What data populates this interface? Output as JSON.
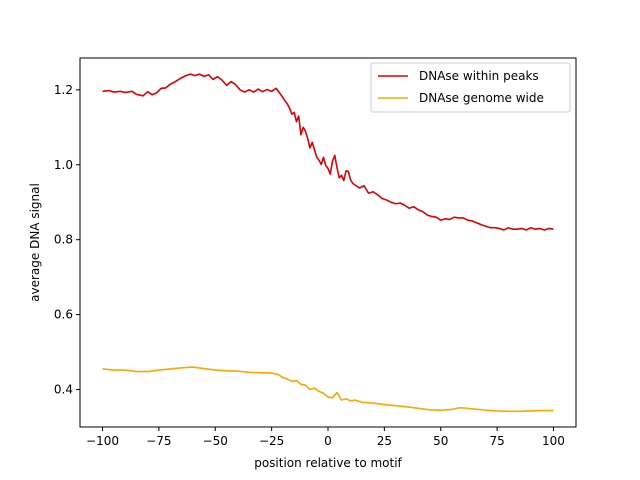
{
  "chart_data": {
    "type": "line",
    "title": "",
    "xlabel": "position relative to motif",
    "ylabel": "average DNA signal",
    "xlim": [
      -110,
      110
    ],
    "ylim": [
      0.3,
      1.285
    ],
    "xticks": [
      -100,
      -75,
      -50,
      -25,
      0,
      25,
      50,
      75,
      100
    ],
    "xtick_labels": [
      "−100",
      "−75",
      "−50",
      "−25",
      "0",
      "25",
      "50",
      "75",
      "100"
    ],
    "yticks": [
      0.4,
      0.6,
      0.8,
      1.0,
      1.2
    ],
    "ytick_labels": [
      "0.4",
      "0.6",
      "0.8",
      "1.0",
      "1.2"
    ],
    "grid": false,
    "legend_position": "top-right",
    "series": [
      {
        "name": "DNAse within peaks",
        "color": "#e00000",
        "x": [
          -100,
          -97,
          -95,
          -92,
          -90,
          -87,
          -85,
          -82,
          -80,
          -78,
          -76,
          -74,
          -72,
          -70,
          -68,
          -65,
          -63,
          -61,
          -59,
          -57,
          -55,
          -53,
          -51,
          -49,
          -47,
          -45,
          -43,
          -41,
          -39,
          -37,
          -35,
          -33,
          -31,
          -29,
          -27,
          -25,
          -23,
          -21,
          -19,
          -18,
          -17,
          -16,
          -15,
          -14,
          -13,
          -12,
          -11,
          -10,
          -9,
          -8,
          -7,
          -6,
          -5,
          -4,
          -3,
          -2,
          -1,
          0,
          1,
          2,
          3,
          4,
          5,
          6,
          7,
          8,
          9,
          10,
          11,
          12,
          14,
          16,
          18,
          20,
          22,
          24,
          26,
          28,
          30,
          32,
          34,
          36,
          38,
          40,
          42,
          44,
          46,
          48,
          50,
          52,
          54,
          56,
          58,
          60,
          62,
          64,
          66,
          68,
          70,
          72,
          74,
          76,
          78,
          80,
          82,
          84,
          86,
          88,
          90,
          92,
          94,
          96,
          98,
          100
        ],
        "y": [
          1.196,
          1.198,
          1.194,
          1.196,
          1.193,
          1.196,
          1.188,
          1.184,
          1.195,
          1.187,
          1.192,
          1.204,
          1.205,
          1.215,
          1.221,
          1.232,
          1.238,
          1.242,
          1.238,
          1.242,
          1.236,
          1.24,
          1.228,
          1.235,
          1.226,
          1.212,
          1.222,
          1.214,
          1.2,
          1.194,
          1.2,
          1.194,
          1.202,
          1.195,
          1.201,
          1.196,
          1.204,
          1.188,
          1.17,
          1.162,
          1.15,
          1.135,
          1.14,
          1.115,
          1.13,
          1.08,
          1.1,
          1.09,
          1.07,
          1.045,
          1.06,
          1.04,
          1.02,
          1.012,
          1.001,
          1.02,
          0.998,
          0.99,
          0.975,
          1.01,
          1.025,
          0.992,
          0.965,
          0.972,
          0.958,
          0.984,
          0.982,
          0.96,
          0.95,
          0.946,
          0.938,
          0.944,
          0.924,
          0.928,
          0.92,
          0.91,
          0.906,
          0.9,
          0.896,
          0.898,
          0.892,
          0.884,
          0.888,
          0.88,
          0.875,
          0.866,
          0.862,
          0.86,
          0.852,
          0.856,
          0.854,
          0.86,
          0.858,
          0.858,
          0.852,
          0.85,
          0.845,
          0.84,
          0.836,
          0.832,
          0.832,
          0.83,
          0.826,
          0.832,
          0.828,
          0.828,
          0.83,
          0.826,
          0.832,
          0.828,
          0.83,
          0.826,
          0.83,
          0.828
        ]
      },
      {
        "name": "DNAse genome wide",
        "color": "#ffa500",
        "x": [
          -100,
          -95,
          -90,
          -85,
          -80,
          -75,
          -70,
          -65,
          -60,
          -55,
          -50,
          -45,
          -40,
          -35,
          -30,
          -25,
          -22,
          -20,
          -18,
          -16,
          -14,
          -12,
          -10,
          -8,
          -6,
          -4,
          -2,
          0,
          2,
          4,
          6,
          8,
          10,
          12,
          15,
          20,
          25,
          30,
          35,
          40,
          45,
          50,
          55,
          58,
          60,
          65,
          70,
          75,
          80,
          85,
          90,
          95,
          100
        ],
        "y": [
          0.455,
          0.452,
          0.452,
          0.448,
          0.448,
          0.452,
          0.455,
          0.458,
          0.46,
          0.456,
          0.452,
          0.45,
          0.449,
          0.446,
          0.445,
          0.444,
          0.44,
          0.432,
          0.428,
          0.422,
          0.424,
          0.414,
          0.412,
          0.4,
          0.404,
          0.395,
          0.39,
          0.38,
          0.378,
          0.392,
          0.372,
          0.375,
          0.37,
          0.372,
          0.366,
          0.364,
          0.36,
          0.357,
          0.354,
          0.35,
          0.346,
          0.345,
          0.347,
          0.351,
          0.351,
          0.348,
          0.345,
          0.343,
          0.342,
          0.342,
          0.343,
          0.344,
          0.344
        ]
      }
    ]
  }
}
